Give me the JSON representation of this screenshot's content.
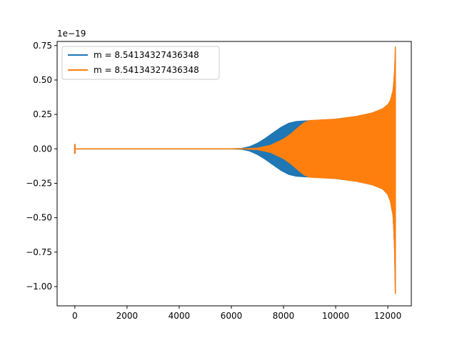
{
  "chart_data": {
    "type": "line",
    "title": "",
    "xlabel": "",
    "ylabel": "",
    "y_offset_label": "1e−19",
    "y_scale_exponent": -19,
    "xlim": [
      -680,
      12900
    ],
    "ylim": [
      -1.14,
      0.78
    ],
    "x_ticks": [
      0,
      2000,
      4000,
      6000,
      8000,
      10000,
      12000
    ],
    "x_tick_labels": [
      "0",
      "2000",
      "4000",
      "6000",
      "8000",
      "10000",
      "12000"
    ],
    "y_ticks": [
      0.75,
      0.5,
      0.25,
      0.0,
      -0.25,
      -0.5,
      -0.75,
      -1.0
    ],
    "y_tick_labels": [
      "0.75",
      "0.50",
      "0.25",
      "0.00",
      "−0.25",
      "−0.50",
      "−0.75",
      "−1.00"
    ],
    "grid": false,
    "legend_position": "top-left",
    "description_note_free": true,
    "series": [
      {
        "name": "m = 8.54134327436348",
        "color": "#1f77b4",
        "envelope": {
          "x": [
            0,
            6000,
            6400,
            6700,
            7000,
            7300,
            7600,
            7900,
            8200,
            8500,
            8800,
            9200,
            10000,
            10800,
            11400,
            11800,
            12000,
            12100,
            12200,
            12230,
            12260,
            12280,
            12290
          ],
          "upper": [
            0.0,
            0.0,
            0.003,
            0.015,
            0.04,
            0.075,
            0.115,
            0.155,
            0.185,
            0.198,
            0.202,
            0.205,
            0.215,
            0.235,
            0.26,
            0.29,
            0.32,
            0.35,
            0.42,
            0.48,
            0.56,
            0.66,
            0.72
          ],
          "lower": [
            0.0,
            0.0,
            -0.003,
            -0.015,
            -0.04,
            -0.075,
            -0.115,
            -0.155,
            -0.185,
            -0.198,
            -0.202,
            -0.205,
            -0.215,
            -0.235,
            -0.26,
            -0.29,
            -0.33,
            -0.38,
            -0.48,
            -0.58,
            -0.72,
            -0.92,
            -1.05
          ]
        },
        "spike": {
          "x": 0,
          "min": -0.035,
          "max": 0.035
        }
      },
      {
        "name": "m = 8.54134327436348",
        "color": "#ff7f0e",
        "envelope": {
          "x": [
            0,
            6500,
            7000,
            7500,
            8000,
            8300,
            8600,
            8800,
            9000,
            10000,
            10800,
            11400,
            11800,
            12000,
            12100,
            12200,
            12230,
            12260,
            12280,
            12290
          ],
          "upper": [
            0.0,
            0.0,
            0.005,
            0.025,
            0.07,
            0.11,
            0.16,
            0.19,
            0.205,
            0.215,
            0.235,
            0.26,
            0.29,
            0.32,
            0.35,
            0.42,
            0.48,
            0.56,
            0.66,
            0.74
          ],
          "lower": [
            0.0,
            0.0,
            -0.005,
            -0.025,
            -0.07,
            -0.11,
            -0.16,
            -0.19,
            -0.205,
            -0.215,
            -0.235,
            -0.26,
            -0.29,
            -0.33,
            -0.38,
            -0.48,
            -0.58,
            -0.72,
            -0.92,
            -1.05
          ]
        },
        "spike": {
          "x": 0,
          "min": -0.035,
          "max": 0.035
        }
      }
    ]
  }
}
